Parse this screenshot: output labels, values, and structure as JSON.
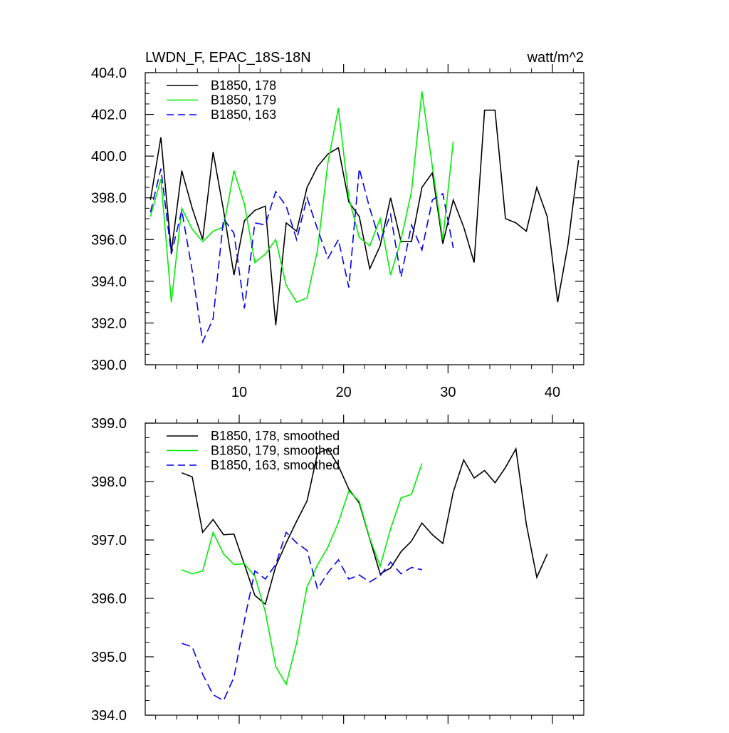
{
  "chart_data": [
    {
      "type": "line",
      "title": "LWDN_F, EPAC_18S-18N",
      "units": "watt/m^2",
      "xlabel": "",
      "ylabel": "",
      "xlim": [
        1,
        43
      ],
      "ylim": [
        390,
        404
      ],
      "xticks": [
        10,
        20,
        30,
        40
      ],
      "xtick_labels": [
        "10",
        "20",
        "30",
        "40"
      ],
      "yticks": [
        390,
        392,
        394,
        396,
        398,
        400,
        402,
        404
      ],
      "ytick_labels": [
        "390.0",
        "392.0",
        "394.0",
        "396.0",
        "398.0",
        "400.0",
        "402.0",
        "404.0"
      ],
      "legend_position": "top-left",
      "series": [
        {
          "name": "B1850, 178",
          "color": "#000000",
          "dash": "solid",
          "x": [
            1.5,
            2.5,
            3.5,
            4.5,
            5.5,
            6.5,
            7.5,
            8.5,
            9.5,
            10.5,
            11.5,
            12.5,
            13.5,
            14.5,
            15.5,
            16.5,
            17.5,
            18.5,
            19.5,
            20.5,
            21.5,
            22.5,
            23.5,
            24.5,
            25.5,
            26.5,
            27.5,
            28.5,
            29.5,
            30.5,
            31.5,
            32.5,
            33.5,
            34.5,
            35.5,
            36.5,
            37.5,
            38.5,
            39.5,
            40.5,
            41.5,
            42.5
          ],
          "values": [
            397.9,
            400.9,
            395.4,
            399.3,
            397.5,
            396.0,
            400.2,
            397.4,
            394.3,
            396.9,
            397.4,
            397.6,
            391.9,
            396.8,
            396.4,
            398.5,
            399.5,
            400.1,
            400.4,
            397.8,
            397.1,
            394.6,
            395.7,
            398.0,
            395.9,
            395.9,
            398.5,
            399.2,
            395.8,
            397.9,
            396.6,
            394.9,
            402.2,
            402.2,
            397.0,
            396.8,
            396.4,
            398.5,
            397.1,
            393.0,
            395.8,
            399.8
          ]
        },
        {
          "name": "B1850, 179",
          "color": "#00ee00",
          "dash": "solid",
          "x": [
            1.5,
            2.5,
            3.5,
            4.5,
            5.5,
            6.5,
            7.5,
            8.5,
            9.5,
            10.5,
            11.5,
            12.5,
            13.5,
            14.5,
            15.5,
            16.5,
            17.5,
            18.5,
            19.5,
            20.5,
            21.5,
            22.5,
            23.5,
            24.5,
            25.5,
            26.5,
            27.5,
            28.5,
            29.5,
            30.5
          ],
          "values": [
            397.1,
            398.9,
            393.0,
            397.5,
            396.5,
            395.9,
            396.4,
            396.6,
            399.3,
            397.7,
            394.9,
            395.3,
            396.0,
            393.8,
            393.0,
            393.2,
            395.5,
            399.7,
            402.3,
            398.0,
            396.1,
            395.7,
            397.0,
            394.3,
            396.0,
            398.3,
            403.1,
            399.5,
            396.0,
            400.7
          ]
        },
        {
          "name": "B1850, 163",
          "color": "#0000ee",
          "dash": "dashed",
          "x": [
            1.5,
            2.5,
            3.5,
            4.5,
            5.5,
            6.5,
            7.5,
            8.5,
            9.5,
            10.5,
            11.5,
            12.5,
            13.5,
            14.5,
            15.5,
            16.5,
            17.5,
            18.5,
            19.5,
            20.5,
            21.5,
            22.5,
            23.5,
            24.5,
            25.5,
            26.5,
            27.5,
            28.5,
            29.5,
            30.5
          ],
          "values": [
            397.3,
            399.4,
            395.3,
            397.4,
            394.5,
            391.1,
            392.2,
            397.0,
            396.3,
            392.7,
            396.8,
            396.7,
            398.3,
            397.6,
            396.0,
            398.0,
            396.5,
            395.1,
            396.0,
            393.7,
            399.4,
            397.5,
            395.9,
            397.2,
            394.2,
            396.7,
            395.5,
            397.9,
            398.2,
            395.6
          ]
        }
      ]
    },
    {
      "type": "line",
      "title": "",
      "xlabel": "",
      "ylabel": "",
      "xlim": [
        1,
        43
      ],
      "ylim": [
        394,
        399
      ],
      "xticks": [
        10,
        20,
        30,
        40
      ],
      "xtick_labels": [
        "",
        "",
        "",
        ""
      ],
      "yticks": [
        394,
        395,
        396,
        397,
        398,
        399
      ],
      "ytick_labels": [
        "394.0",
        "395.0",
        "396.0",
        "397.0",
        "398.0",
        "399.0"
      ],
      "legend_position": "top-left",
      "series": [
        {
          "name": "B1850, 178, smoothed",
          "color": "#000000",
          "dash": "solid",
          "x": [
            4.5,
            5.5,
            6.5,
            7.5,
            8.5,
            9.5,
            10.5,
            11.5,
            12.5,
            13.5,
            14.5,
            15.5,
            16.5,
            17.5,
            18.5,
            19.5,
            20.5,
            21.5,
            22.5,
            23.5,
            24.5,
            25.5,
            26.5,
            27.5,
            28.5,
            29.5,
            30.5,
            31.5,
            32.5,
            33.5,
            34.5,
            35.5,
            36.5,
            37.5,
            38.5,
            39.5
          ],
          "values": [
            398.15,
            398.08,
            397.13,
            397.35,
            397.09,
            397.1,
            396.58,
            396.05,
            395.9,
            396.55,
            396.95,
            397.32,
            397.67,
            398.48,
            398.56,
            398.27,
            397.87,
            397.63,
            397.02,
            396.42,
            396.52,
            396.8,
            396.98,
            397.29,
            397.09,
            396.94,
            397.82,
            398.37,
            398.06,
            398.19,
            397.98,
            398.24,
            398.56,
            397.27,
            396.36,
            396.76
          ]
        },
        {
          "name": "B1850, 179, smoothed",
          "color": "#00ee00",
          "dash": "solid",
          "x": [
            4.5,
            5.5,
            6.5,
            7.5,
            8.5,
            9.5,
            10.5,
            11.5,
            12.5,
            13.5,
            14.5,
            15.5,
            16.5,
            17.5,
            18.5,
            19.5,
            20.5,
            21.5,
            22.5,
            23.5,
            24.5,
            25.5,
            26.5,
            27.5
          ],
          "values": [
            396.49,
            396.42,
            396.47,
            397.13,
            396.76,
            396.58,
            396.59,
            396.38,
            395.77,
            394.83,
            394.53,
            395.24,
            396.2,
            396.57,
            396.88,
            397.3,
            397.84,
            397.66,
            397.03,
            396.55,
            397.19,
            397.72,
            397.78,
            398.31
          ]
        },
        {
          "name": "B1850, 163, smoothed",
          "color": "#0000ee",
          "dash": "dashed",
          "x": [
            4.5,
            5.5,
            6.5,
            7.5,
            8.5,
            9.5,
            10.5,
            11.5,
            12.5,
            13.5,
            14.5,
            15.5,
            16.5,
            17.5,
            18.5,
            19.5,
            20.5,
            21.5,
            22.5,
            23.5,
            24.5,
            25.5,
            26.5,
            27.5
          ],
          "values": [
            395.23,
            395.17,
            394.7,
            394.35,
            394.25,
            394.65,
            395.62,
            396.47,
            396.33,
            396.58,
            397.13,
            396.95,
            396.82,
            396.16,
            396.44,
            396.66,
            396.33,
            396.4,
            396.28,
            396.39,
            396.62,
            396.42,
            396.53,
            396.49
          ]
        }
      ]
    }
  ]
}
